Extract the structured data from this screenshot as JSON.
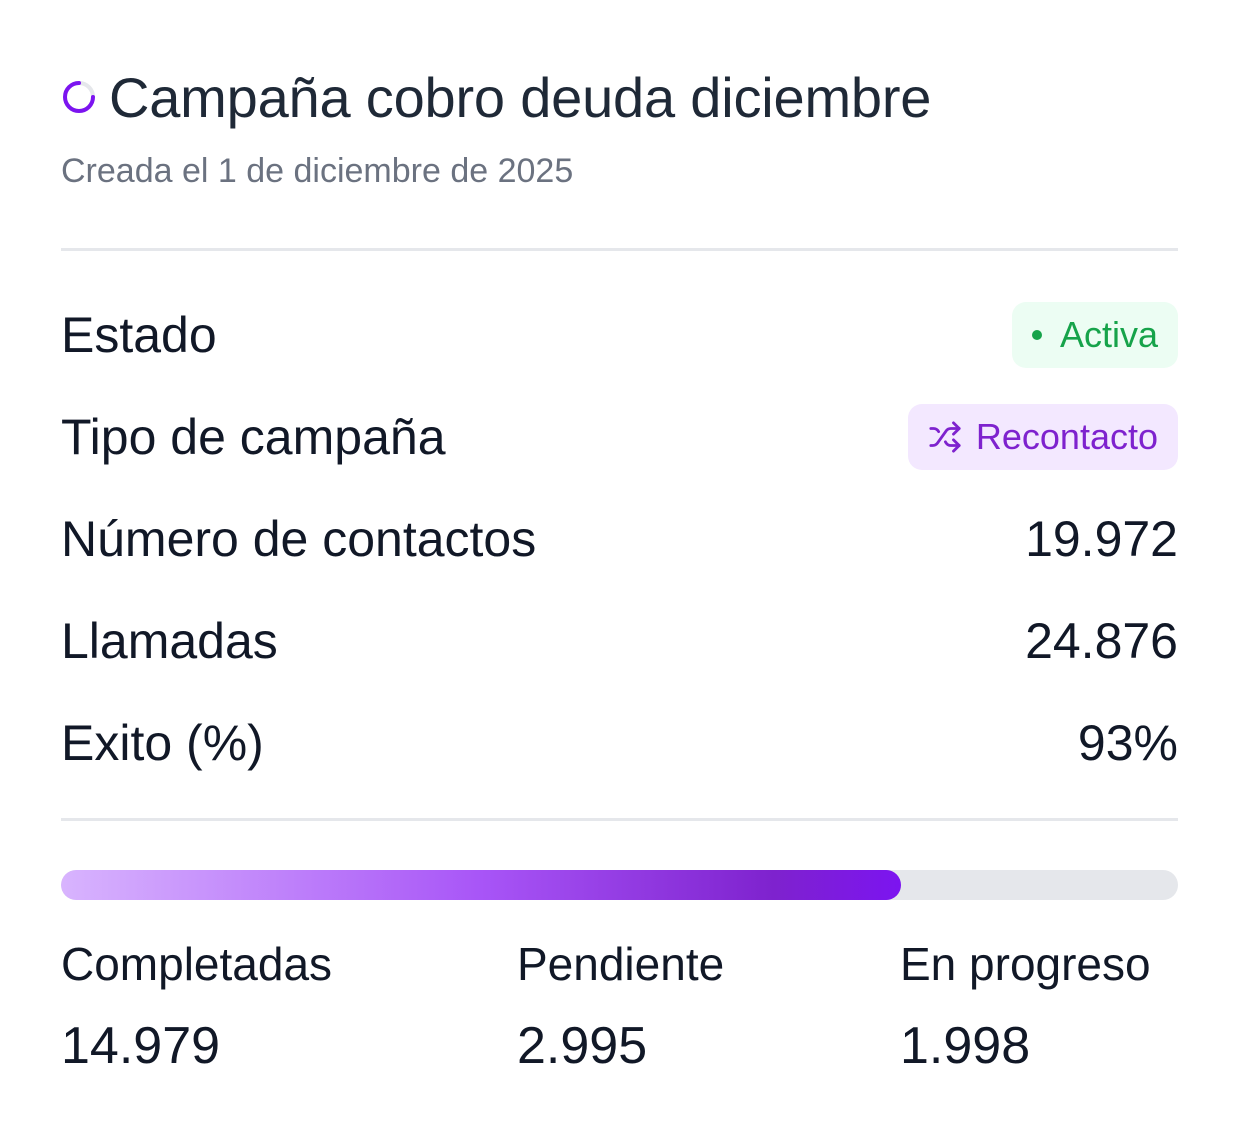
{
  "header": {
    "title": "Campaña cobro deuda diciembre",
    "subtitle": "Creada el 1 de diciembre de 2025",
    "status_icon": "spinner-icon"
  },
  "details": {
    "status": {
      "label": "Estado",
      "value": "Activa",
      "color": "#16a34a"
    },
    "type": {
      "label": "Tipo de campaña",
      "value": "Recontacto",
      "icon": "shuffle-icon",
      "color": "#7e22ce"
    },
    "contacts": {
      "label": "Número de contactos",
      "value": "19.972"
    },
    "calls": {
      "label": "Llamadas",
      "value": "24.876"
    },
    "success": {
      "label": "Exito (%)",
      "value": "93%"
    }
  },
  "progress": {
    "fraction": 0.752,
    "accent": "#7c14f0"
  },
  "stats": {
    "completed": {
      "label": "Completadas",
      "value": "14.979"
    },
    "pending": {
      "label": "Pendiente",
      "value": "2.995"
    },
    "in_progress": {
      "label": "En progreso",
      "value": "1.998"
    }
  }
}
